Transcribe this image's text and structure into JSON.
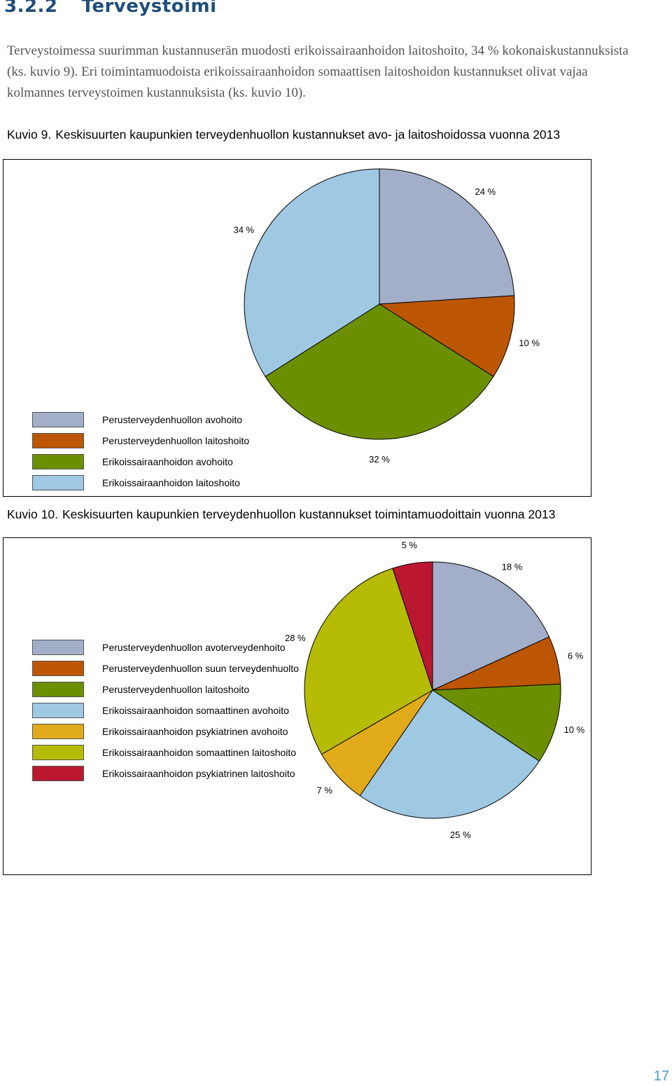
{
  "section": {
    "number": "3.2.2",
    "title": "Terveystoimi"
  },
  "intro_text": "Terveystoimessa suurimman kustannuserän muodosti erikoissairaanhoidon laitoshoito, 34 % kokonaiskustannuksista (ks. kuvio 9). Eri toimintamuodoista erikoissairaanhoidon somaattisen laitoshoidon kustannukset olivat vajaa kolmannes terveystoimen kustannuksista (ks. kuvio 10).",
  "page_number": "17",
  "chart_data": [
    {
      "type": "pie",
      "caption_label": "Kuvio 9.",
      "title": "Keskisuurten kaupunkien terveydenhuollon kustannukset avo- ja laitoshoidossa vuonna 2013",
      "legend_position": "bottom-left",
      "slices": [
        {
          "label": "Perusterveydenhuollon avohoito",
          "value": 24,
          "value_label": "24 %",
          "color": "#a3afc9"
        },
        {
          "label": "Perusterveydenhuollon laitoshoito",
          "value": 10,
          "value_label": "10 %",
          "color": "#bc5602"
        },
        {
          "label": "Erikoissairaanhoidon avohoito",
          "value": 32,
          "value_label": "32 %",
          "color": "#6c8f00"
        },
        {
          "label": "Erikoissairaanhoidon laitoshoito",
          "value": 34,
          "value_label": "34 %",
          "color": "#9fc8e3"
        }
      ]
    },
    {
      "type": "pie",
      "caption_label": "Kuvio 10.",
      "title": "Keskisuurten kaupunkien terveydenhuollon kustannukset toimintamuodoittain vuonna 2013",
      "legend_position": "left",
      "slices": [
        {
          "label": "Perusterveydenhuollon avoterveydenhoito",
          "value": 18,
          "value_label": "18 %",
          "color": "#a3afc9"
        },
        {
          "label": "Perusterveydenhuollon suun terveydenhuolto",
          "value": 6,
          "value_label": "6 %",
          "color": "#bc5602"
        },
        {
          "label": "Perusterveydenhuollon laitoshoito",
          "value": 10,
          "value_label": "10 %",
          "color": "#6c8f00"
        },
        {
          "label": "Erikoissairaanhoidon somaattinen avohoito",
          "value": 25,
          "value_label": "25 %",
          "color": "#9fc8e3"
        },
        {
          "label": "Erikoissairaanhoidon psykiatrinen avohoito",
          "value": 7,
          "value_label": "7 %",
          "color": "#e0aa1a"
        },
        {
          "label": "Erikoissairaanhoidon somaattinen laitoshoito",
          "value": 28,
          "value_label": "28 %",
          "color": "#b6bc06"
        },
        {
          "label": "Erikoissairaanhoidon psykiatrinen laitoshoito",
          "value": 5,
          "value_label": "5 %",
          "color": "#bc1730"
        }
      ]
    }
  ]
}
